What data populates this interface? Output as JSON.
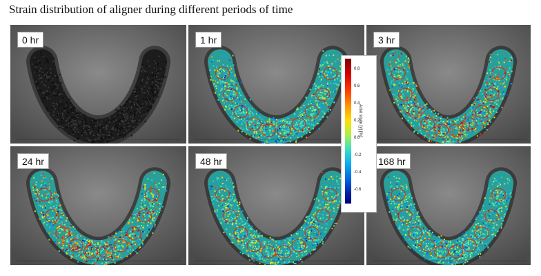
{
  "title": "Strain distribution of aligner during different periods of time",
  "panels": [
    {
      "label": "0 hr",
      "strain": "none"
    },
    {
      "label": "1 hr",
      "strain": "moderate"
    },
    {
      "label": "3 hr",
      "strain": "high"
    },
    {
      "label": "24 hr",
      "strain": "high"
    },
    {
      "label": "48 hr",
      "strain": "moderate"
    },
    {
      "label": "168 hr",
      "strain": "moderate"
    }
  ],
  "colorbar": {
    "label": "Axial strain [y] [%]",
    "ticks": [
      "0.8",
      "0.6",
      "0.4",
      "0.2",
      "0.0",
      "-0.2",
      "-0.4",
      "-0.6"
    ],
    "colors": [
      "#7f0000",
      "#ff3a00",
      "#ffe000",
      "#40e0c0",
      "#0060e0",
      "#00007f"
    ]
  }
}
